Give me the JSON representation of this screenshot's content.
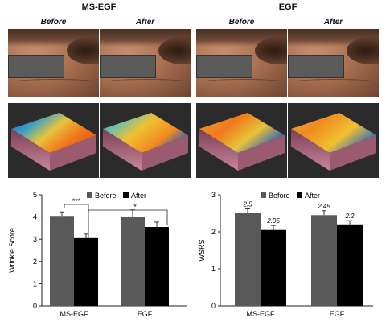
{
  "panels": {
    "groups": [
      {
        "label": "MS-EGF"
      },
      {
        "label": "EGF"
      }
    ],
    "before_after": [
      "Before",
      "After",
      "Before",
      "After"
    ]
  },
  "chart_data": [
    {
      "type": "bar",
      "categories": [
        "MS-EGF",
        "EGF"
      ],
      "series": [
        {
          "name": "Before",
          "values": [
            4.05,
            4.0
          ],
          "errors": [
            0.18,
            0.32
          ],
          "color": "#595959"
        },
        {
          "name": "After",
          "values": [
            3.05,
            3.55
          ],
          "errors": [
            0.18,
            0.22
          ],
          "color": "#000000"
        }
      ],
      "ylabel": "Wrinkle Score",
      "xlabel": "",
      "ylim": [
        0,
        5
      ],
      "yticks": [
        "0",
        "1",
        "2",
        "3",
        "4",
        "5"
      ],
      "legend": "top",
      "annotations": [
        "***",
        "*"
      ]
    },
    {
      "type": "bar",
      "categories": [
        "MS-EGF",
        "EGF"
      ],
      "series": [
        {
          "name": "Before",
          "values": [
            2.5,
            2.45
          ],
          "errors": [
            0.12,
            0.12
          ],
          "labels": [
            "2.5",
            "2.45"
          ],
          "color": "#595959"
        },
        {
          "name": "After",
          "values": [
            2.05,
            2.2
          ],
          "errors": [
            0.12,
            0.1
          ],
          "labels": [
            "2.05",
            "2.2"
          ],
          "color": "#000000"
        }
      ],
      "ylabel": "WSRS",
      "xlabel": "",
      "ylim": [
        0,
        3
      ],
      "yticks": [
        "0",
        "1",
        "2",
        "3"
      ],
      "legend": "top"
    }
  ]
}
